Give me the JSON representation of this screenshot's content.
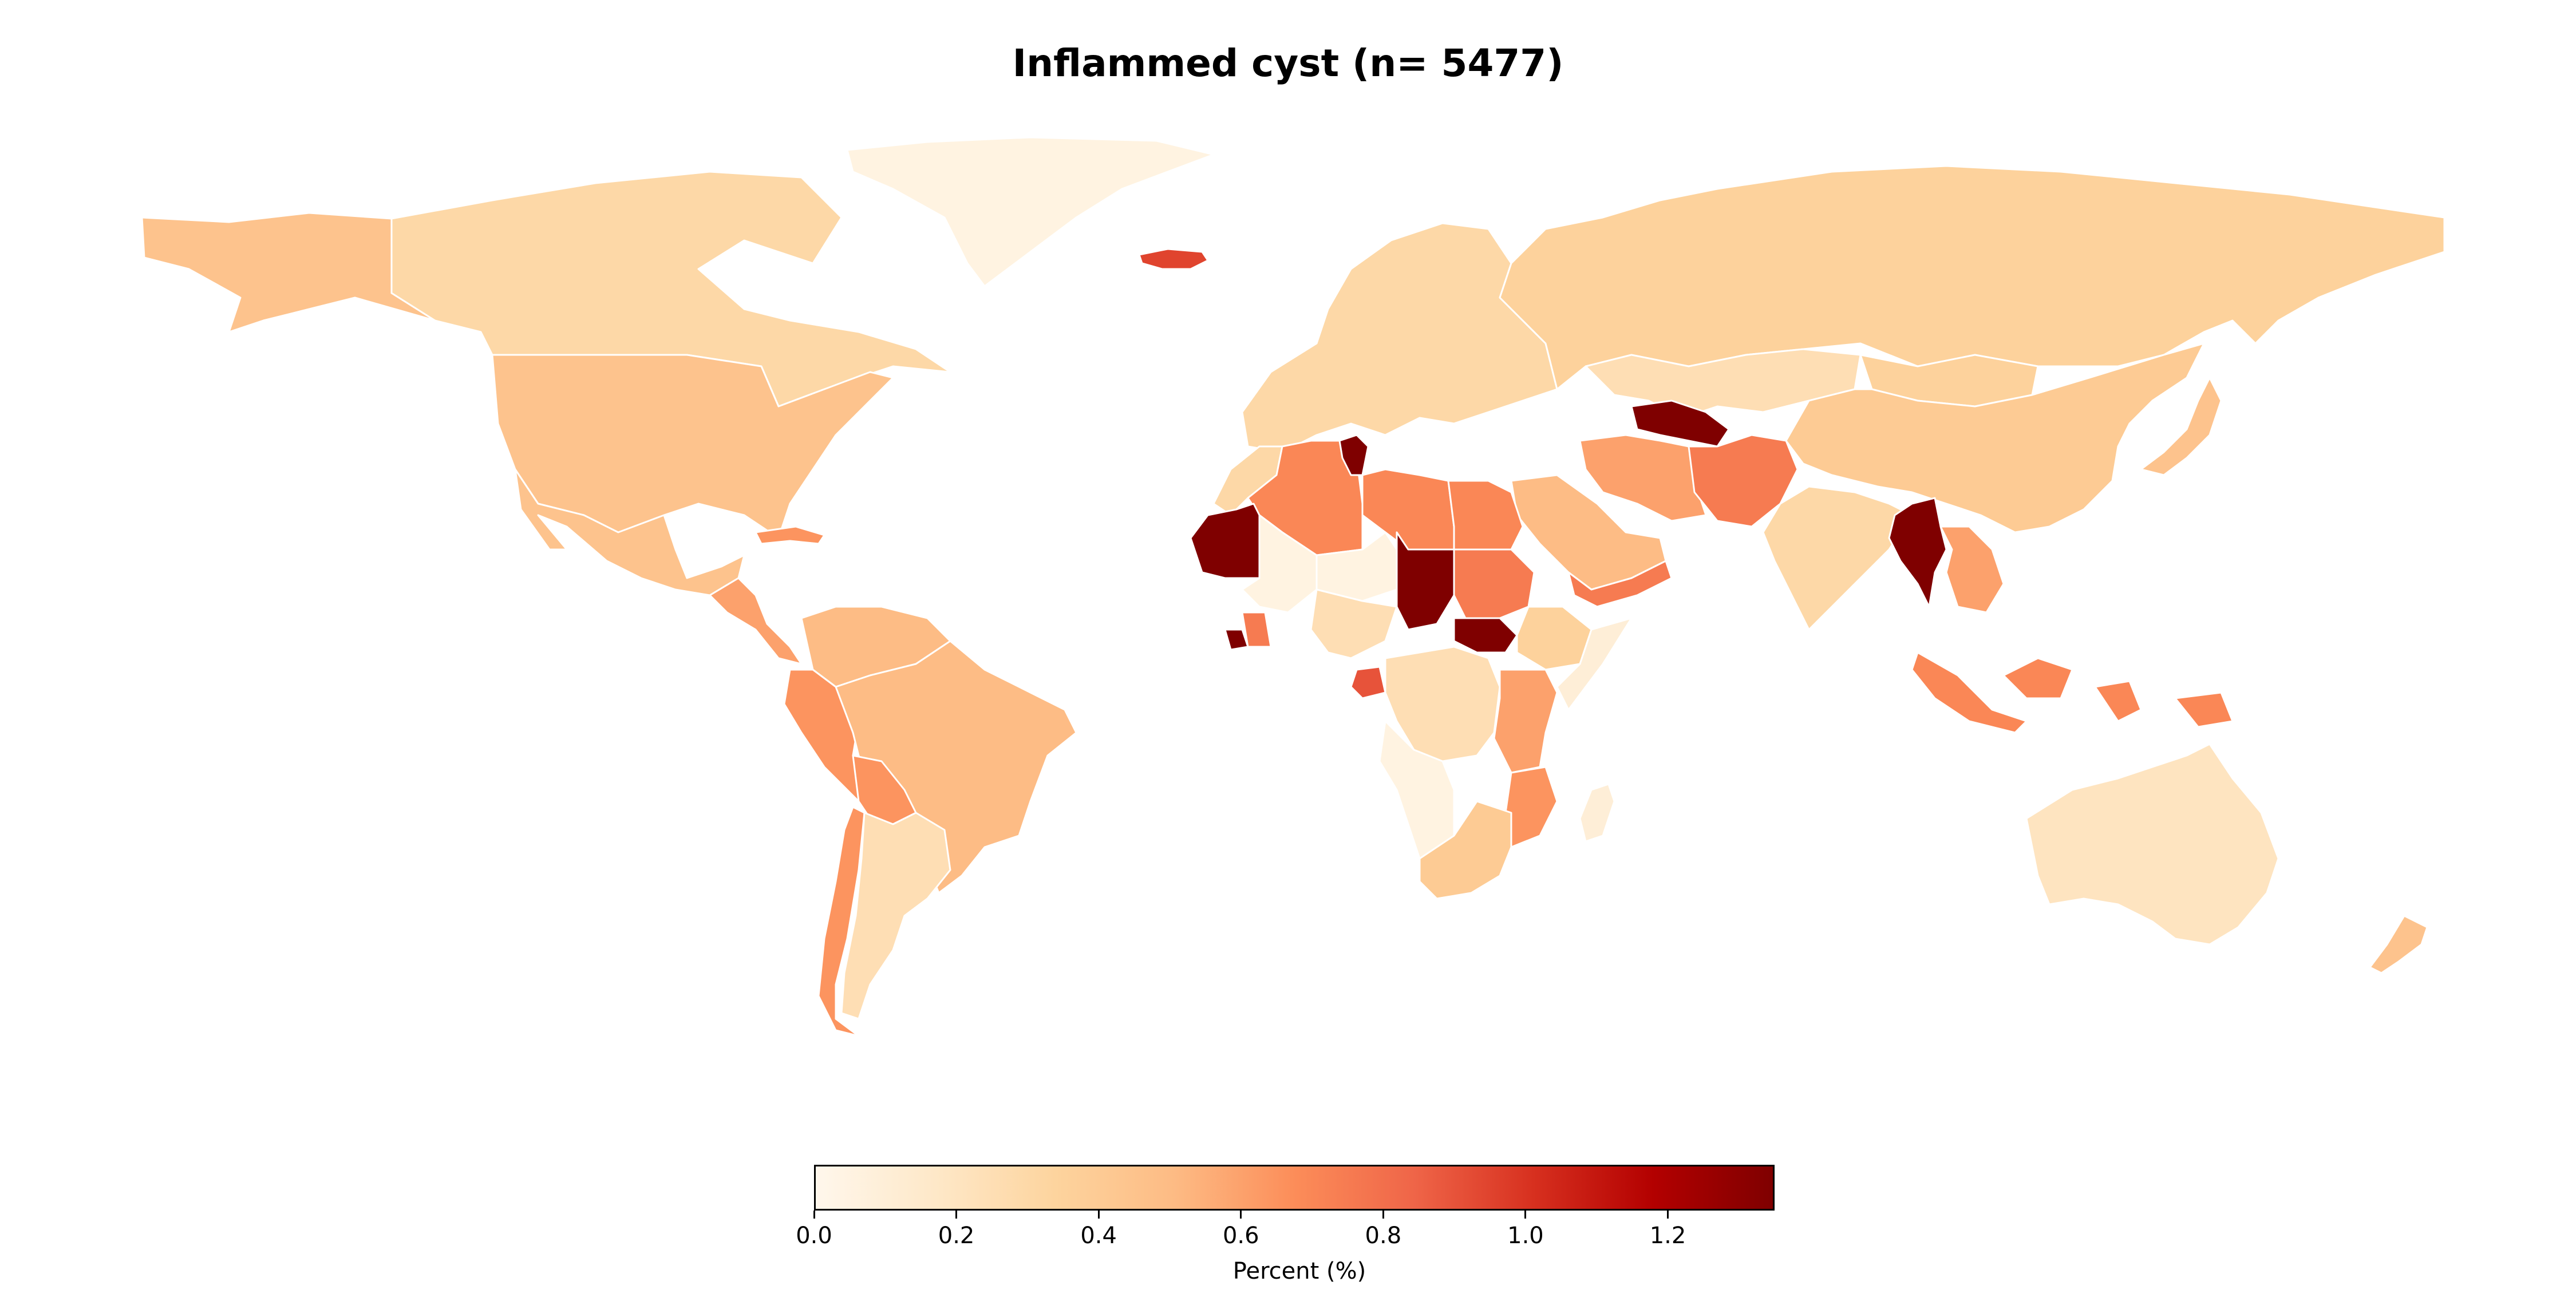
{
  "title": "Inflammed cyst (n= 5477)",
  "colorbar": {
    "label": "Percent (%)",
    "min": 0.0,
    "max": 1.35,
    "colormap": "OrRd",
    "ticks": [
      "0.0",
      "0.2",
      "0.4",
      "0.6",
      "0.8",
      "1.0",
      "1.2"
    ]
  },
  "map_data": {
    "type": "choropleth",
    "unit": "percent",
    "regions": [
      {
        "region": "greenland",
        "value": 0.05
      },
      {
        "region": "alaska",
        "value": 0.45
      },
      {
        "region": "canada",
        "value": 0.3
      },
      {
        "region": "usa",
        "value": 0.45
      },
      {
        "region": "mexico",
        "value": 0.45
      },
      {
        "region": "central-america",
        "value": 0.6
      },
      {
        "region": "cuba",
        "value": 0.65
      },
      {
        "region": "colombia-venezuela",
        "value": 0.5
      },
      {
        "region": "peru-ecuador",
        "value": 0.65
      },
      {
        "region": "brazil",
        "value": 0.5
      },
      {
        "region": "bolivia",
        "value": 0.65
      },
      {
        "region": "chile",
        "value": 0.65
      },
      {
        "region": "argentina",
        "value": 0.25
      },
      {
        "region": "iceland",
        "value": 0.95
      },
      {
        "region": "europe",
        "value": 0.3
      },
      {
        "region": "russia",
        "value": 0.35
      },
      {
        "region": "kazakhstan",
        "value": 0.25
      },
      {
        "region": "turkmenistan",
        "value": 1.35
      },
      {
        "region": "iran",
        "value": 0.6
      },
      {
        "region": "afghanistan",
        "value": 0.75
      },
      {
        "region": "saudi-arabia",
        "value": 0.5
      },
      {
        "region": "yemen",
        "value": 0.75
      },
      {
        "region": "china",
        "value": 0.4
      },
      {
        "region": "mongolia",
        "value": 0.35
      },
      {
        "region": "india",
        "value": 0.3
      },
      {
        "region": "myanmar",
        "value": 1.35
      },
      {
        "region": "southeast-asia",
        "value": 0.6
      },
      {
        "region": "indonesia",
        "value": 0.7
      },
      {
        "region": "japan",
        "value": 0.45
      },
      {
        "region": "australia",
        "value": 0.2
      },
      {
        "region": "new-zealand",
        "value": 0.45
      },
      {
        "region": "morocco",
        "value": 0.3
      },
      {
        "region": "algeria",
        "value": 0.7
      },
      {
        "region": "tunisia",
        "value": 1.35
      },
      {
        "region": "libya",
        "value": 0.7
      },
      {
        "region": "egypt",
        "value": 0.7
      },
      {
        "region": "mauritania",
        "value": 1.35
      },
      {
        "region": "mali",
        "value": 0.05
      },
      {
        "region": "niger",
        "value": 0.05
      },
      {
        "region": "chad",
        "value": 1.35
      },
      {
        "region": "sudan",
        "value": 0.75
      },
      {
        "region": "south-sudan",
        "value": 1.35
      },
      {
        "region": "ethiopia",
        "value": 0.35
      },
      {
        "region": "somalia",
        "value": 0.1
      },
      {
        "region": "nigeria",
        "value": 0.25
      },
      {
        "region": "ghana",
        "value": 0.75
      },
      {
        "region": "liberia",
        "value": 1.35
      },
      {
        "region": "gabon",
        "value": 0.9
      },
      {
        "region": "dr-congo",
        "value": 0.25
      },
      {
        "region": "kenya-tanzania",
        "value": 0.6
      },
      {
        "region": "angola-namibia",
        "value": 0.05
      },
      {
        "region": "mozambique",
        "value": 0.65
      },
      {
        "region": "south-africa",
        "value": 0.4
      },
      {
        "region": "madagascar",
        "value": 0.1
      }
    ]
  }
}
